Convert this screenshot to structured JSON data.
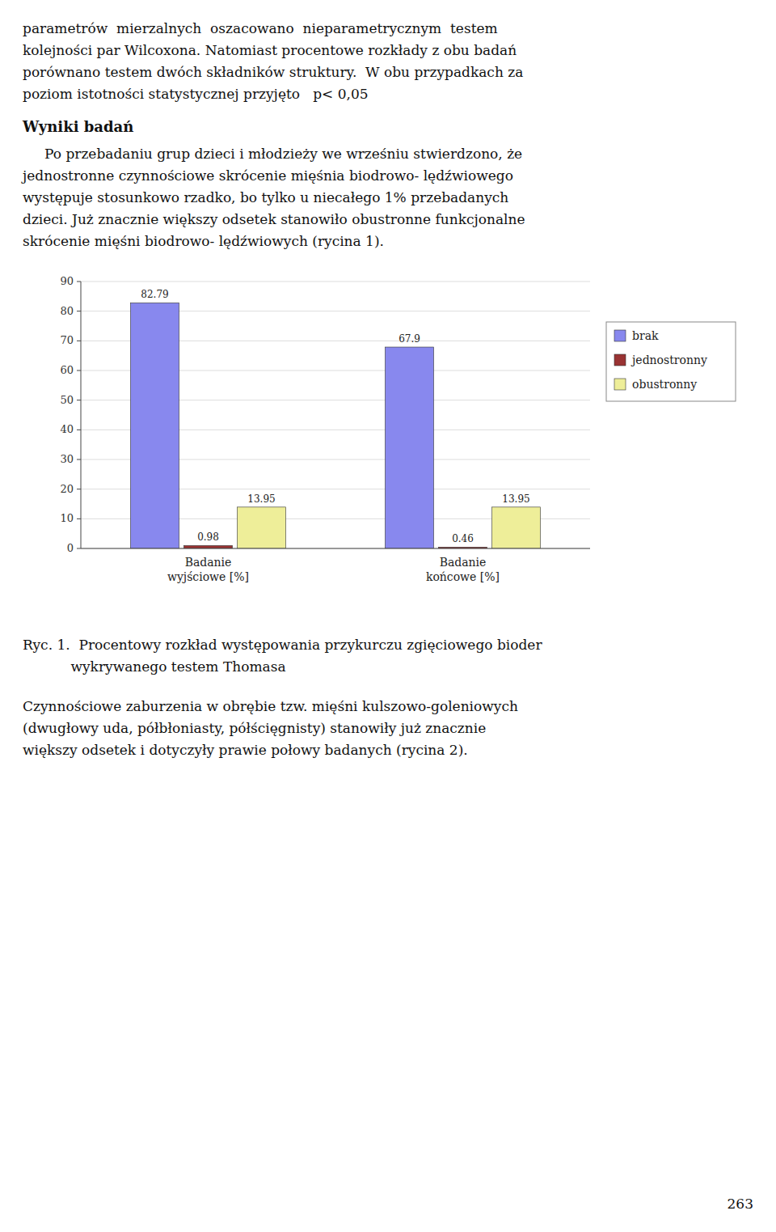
{
  "page_text_top": [
    "parametrów  mierzalnych  oszacowano  nieparametrycznym  testem",
    "kolejności par Wilcoxona. Natomiast procentowe rozkłady z obu badań",
    "porównano testem dwóch składników struktury.  W obu przypadkach za",
    "poziom istotności statystycznej przyjęto   p< 0,05"
  ],
  "section_title": "Wyniki badań",
  "body_text": [
    "     Po przebadaniu grup dzieci i młodzieży we wrześniu stwierdzono, że",
    "jednostronne czynnościowe skrócenie mięśnia biodrowo- lędźwiowego",
    "występuje stosunkowo rzadko, bo tylko u niecałego 1% przebadanych",
    "dzieci. Już znacznie większy odsetek stanowiło obustronne funkcjonalne",
    "skrócenie mięśni biodrowo- lędźwiowych (rycina 1)."
  ],
  "chart_data": {
    "type": "bar",
    "categories": [
      "Badanie\nwyjściowe [%]",
      "Badanie\nkońcowe [%]"
    ],
    "series": [
      {
        "name": "brak",
        "values": [
          82.79,
          67.9
        ],
        "color": "#8888ee"
      },
      {
        "name": "jednostronny",
        "values": [
          0.98,
          0.46
        ],
        "color": "#993333"
      },
      {
        "name": "obustronny",
        "values": [
          13.95,
          13.95
        ],
        "color": "#eeee99"
      }
    ],
    "ylim": [
      0,
      90
    ],
    "yticks": [
      0,
      10,
      20,
      30,
      40,
      50,
      60,
      70,
      80,
      90
    ],
    "grid": true,
    "legend": "right",
    "data_labels": true
  },
  "caption_lines": [
    "Ryc. 1.  Procentowy rozkład występowania przykurczu zgięciowego bioder",
    "           wykrywanego testem Thomasa"
  ],
  "bottom_text": [
    "Czynnościowe zaburzenia w obrębie tzw. mięśni kulszowo-goleniowych",
    "(dwugłowy uda, półbłoniasty, półścięgnisty) stanowiły już znacznie",
    "większy odsetek i dotyczyły prawie połowy badanych (rycina 2)."
  ],
  "page_number": "263"
}
